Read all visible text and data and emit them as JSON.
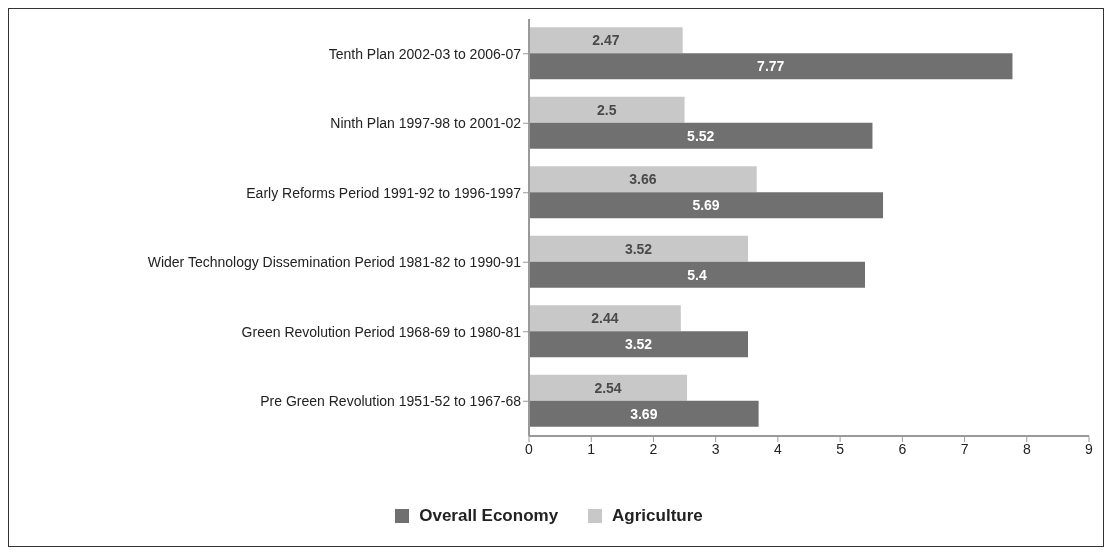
{
  "chart_data": {
    "type": "bar",
    "orientation": "horizontal",
    "categories": [
      "Tenth Plan 2002-03 to 2006-07",
      "Ninth Plan 1997-98 to 2001-02",
      "Early Reforms Period 1991-92 to 1996-1997",
      "Wider Technology Dissemination Period 1981-82 to 1990-91",
      "Green Revolution Period 1968-69  to 1980-81",
      "Pre Green Revolution 1951-52 to 1967-68"
    ],
    "series": [
      {
        "name": "Overall Economy",
        "color": "#707070",
        "values": [
          7.77,
          5.52,
          5.69,
          5.4,
          3.52,
          3.69
        ]
      },
      {
        "name": "Agriculture",
        "color": "#c8c8c8",
        "values": [
          2.47,
          2.5,
          3.66,
          3.52,
          2.44,
          2.54
        ]
      }
    ],
    "xlim": [
      0,
      9
    ],
    "xticks": [
      0,
      1,
      2,
      3,
      4,
      5,
      6,
      7,
      8,
      9
    ],
    "grid": false,
    "legend": "bottom",
    "data_labels": true
  }
}
